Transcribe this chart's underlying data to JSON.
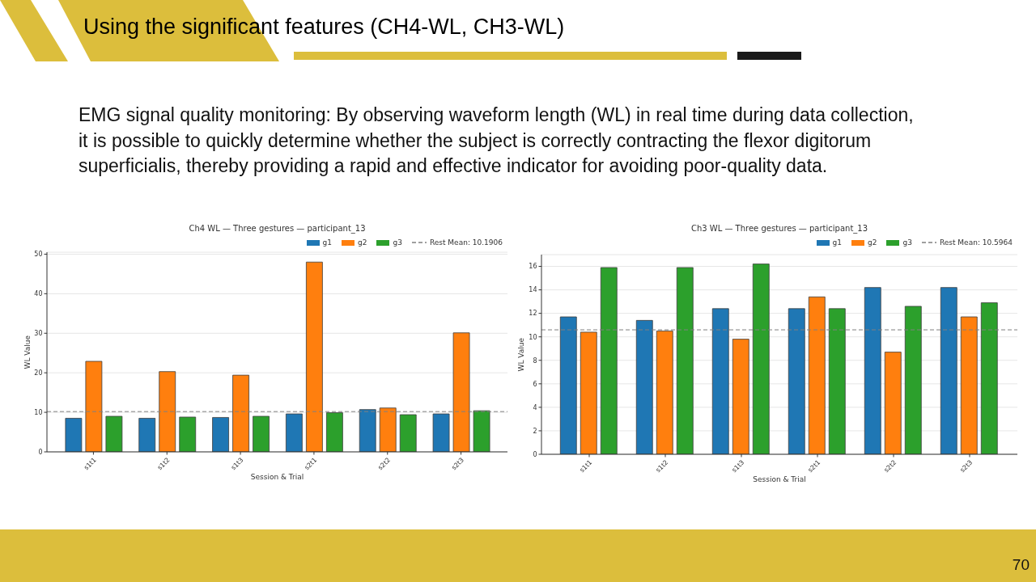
{
  "chart_data": [
    {
      "type": "other",
      "title": "Using the significant features (CH4-WL, CH3-WL)",
      "annotations": [
        "EMG signal quality monitoring: By observing waveform length (WL) in real time during data collection,\nit is possible to quickly determine whether the subject is correctly contracting the flexor digitorum\nsuperficialis, thereby providing a rapid and effective indicator for avoiding poor-quality data.",
        "70"
      ]
    },
    {
      "type": "bar",
      "title": "Ch4 WL — Three gestures — participant_13",
      "xlabel": "Session & Trial",
      "ylabel": "WL Value",
      "categories": [
        "s1t1",
        "s1t2",
        "s1t3",
        "s2t1",
        "s2t2",
        "s2t3"
      ],
      "series": [
        {
          "name": "g1",
          "color": "#1f77b4",
          "values": [
            8.5,
            8.5,
            8.7,
            9.6,
            10.7,
            9.6
          ]
        },
        {
          "name": "g2",
          "color": "#ff7f0e",
          "values": [
            22.9,
            20.3,
            19.4,
            48.0,
            11.1,
            30.1
          ]
        },
        {
          "name": "g3",
          "color": "#2ca02c",
          "values": [
            9.0,
            8.8,
            9.0,
            9.9,
            9.4,
            10.4
          ]
        }
      ],
      "ylim": [
        0,
        50.5
      ],
      "yticks": [
        0,
        10,
        20,
        30,
        40,
        50
      ],
      "grid": "y",
      "legend": "top right",
      "ref_lines": [
        {
          "axis": "y",
          "value": 10.1906,
          "label": "Rest Mean: 10.1906",
          "color": "#808080",
          "line_style": "dashed"
        }
      ]
    },
    {
      "type": "bar",
      "title": "Ch3 WL — Three gestures — participant_13",
      "xlabel": "Session & Trial",
      "ylabel": "WL Value",
      "categories": [
        "s1t1",
        "s1t2",
        "s1t3",
        "s2t1",
        "s2t2",
        "s2t3"
      ],
      "series": [
        {
          "name": "g1",
          "color": "#1f77b4",
          "values": [
            11.7,
            11.4,
            12.4,
            12.4,
            14.2,
            14.2
          ]
        },
        {
          "name": "g2",
          "color": "#ff7f0e",
          "values": [
            10.4,
            10.5,
            9.8,
            13.4,
            8.7,
            11.7
          ]
        },
        {
          "name": "g3",
          "color": "#2ca02c",
          "values": [
            15.9,
            15.9,
            16.2,
            12.4,
            12.6,
            12.9
          ]
        }
      ],
      "ylim": [
        0,
        17
      ],
      "yticks": [
        0,
        2,
        4,
        6,
        8,
        10,
        12,
        14,
        16
      ],
      "grid": "y",
      "legend": "top right",
      "ref_lines": [
        {
          "axis": "y",
          "value": 10.5964,
          "label": "Rest Mean: 10.5964",
          "color": "#808080",
          "line_style": "dashed"
        }
      ]
    }
  ]
}
